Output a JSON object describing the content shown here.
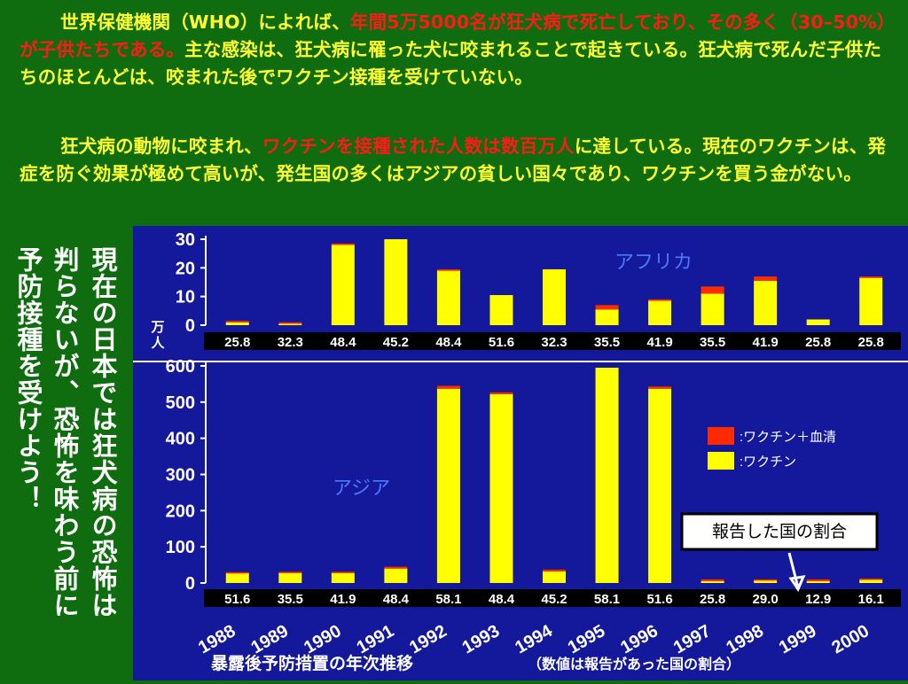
{
  "paragraph1": {
    "seg1": "世界保健機関（WHO）によれば、",
    "seg2_red": "年間5万5000名が狂犬病で死亡しており、その多く（30–50%）が子供たちである。",
    "seg3": "主な感染は、狂犬病に罹った犬に咬まれることで起きている。狂犬病で死んだ子供たちのほとんどは、咬まれた後でワクチン接種を受けていない。"
  },
  "paragraph2": {
    "seg1": "狂犬病の動物に咬まれ、",
    "seg2_red": "ワクチンを接種された人数は数百万人",
    "seg3": "に達している。現在のワクチンは、発症を防ぐ効果が極めて高いが、発生国の多くはアジアの貧しい国々であり、ワクチンを買う金がない。"
  },
  "vertical_text": {
    "line1": "現在の日本では狂犬病の恐怖は",
    "line2": "判らないが、恐怖を味わう前に",
    "line3": "予防接種を受けよう！"
  },
  "colors": {
    "background": "#0f6d0f",
    "panel": "#14189a",
    "vaccine": "#ffff00",
    "vaccine_serum": "#ff2a00",
    "text_red": "#ff1a1a",
    "text_yellow": "#ffff33"
  },
  "chart_data": {
    "type": "bar",
    "title": "暴露後予防措置の年次推移",
    "title_note": "（数値は報告があった国の割合）",
    "categories": [
      "1988",
      "1989",
      "1990",
      "1991",
      "1992",
      "1993",
      "1994",
      "1995",
      "1996",
      "1997",
      "1998",
      "1999",
      "2000"
    ],
    "legend": [
      {
        "key": "vaccine_serum",
        "label": ":ワクチン＋血清"
      },
      {
        "key": "vaccine",
        "label": ":ワクチン"
      }
    ],
    "callout": "報告した国の割合",
    "panels": [
      {
        "name": "アフリカ",
        "ylabel": "万人",
        "ylim": [
          0,
          30
        ],
        "yticks": [
          0,
          10,
          20,
          30
        ],
        "series": [
          {
            "key": "vaccine",
            "values": [
              1,
              0.5,
              28,
              30,
              19,
              10.5,
              19.5,
              5.5,
              8.5,
              11,
              15.5,
              2,
              16.5
            ]
          },
          {
            "key": "vaccine_serum",
            "values": [
              0.5,
              0.5,
              0.5,
              0,
              0.5,
              0,
              0,
              1.5,
              0.5,
              2.5,
              1.5,
              0,
              0.5
            ]
          }
        ],
        "report_rates": [
          "25.8",
          "32.3",
          "48.4",
          "45.2",
          "48.4",
          "51.6",
          "32.3",
          "35.5",
          "41.9",
          "35.5",
          "41.9",
          "25.8",
          "25.8"
        ]
      },
      {
        "name": "アジア",
        "ylabel": "",
        "ylim": [
          0,
          600
        ],
        "yticks": [
          0,
          100,
          200,
          300,
          400,
          500,
          600
        ],
        "series": [
          {
            "key": "vaccine",
            "values": [
              28,
              28,
              28,
              40,
              537,
              522,
              32,
              595,
              537,
              5,
              8,
              5,
              10
            ]
          },
          {
            "key": "vaccine_serum",
            "values": [
              2,
              3,
              3,
              5,
              8,
              5,
              5,
              0,
              6,
              5,
              2,
              5,
              2
            ]
          }
        ],
        "report_rates": [
          "51.6",
          "35.5",
          "41.9",
          "48.4",
          "58.1",
          "48.4",
          "45.2",
          "58.1",
          "51.6",
          "25.8",
          "29.0",
          "12.9",
          "16.1"
        ]
      }
    ]
  }
}
